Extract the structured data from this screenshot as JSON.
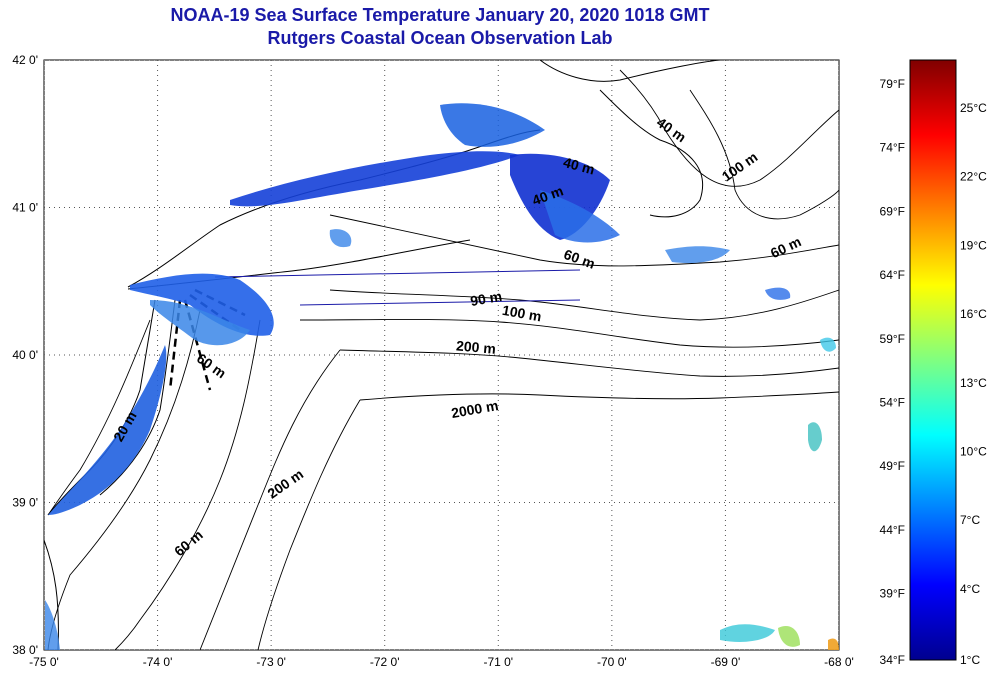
{
  "title": {
    "line1": "NOAA-19 Sea Surface Temperature January 20, 2020 1018 GMT",
    "line2": "Rutgers Coastal Ocean Observation Lab"
  },
  "map": {
    "lat_ticks": [
      {
        "lat": 42,
        "label": "42 0'"
      },
      {
        "lat": 41,
        "label": "41 0'"
      },
      {
        "lat": 40,
        "label": "40 0'"
      },
      {
        "lat": 39,
        "label": "39 0'"
      },
      {
        "lat": 38,
        "label": "38 0'"
      }
    ],
    "lon_ticks": [
      {
        "lon": -75,
        "label": "-75 0'"
      },
      {
        "lon": -74,
        "label": "-74 0'"
      },
      {
        "lon": -73,
        "label": "-73 0'"
      },
      {
        "lon": -72,
        "label": "-72 0'"
      },
      {
        "lon": -71,
        "label": "-71 0'"
      },
      {
        "lon": -70,
        "label": "-70 0'"
      },
      {
        "lon": -69,
        "label": "-69 0'"
      },
      {
        "lon": -68,
        "label": "-68 0'"
      }
    ],
    "depth_labels": [
      {
        "text": "40 m",
        "lon": -69.5,
        "lat": 41.5,
        "rot": 35
      },
      {
        "text": "100 m",
        "lon": -68.85,
        "lat": 41.25,
        "rot": -35
      },
      {
        "text": "40 m",
        "lon": -70.3,
        "lat": 41.25,
        "rot": 15
      },
      {
        "text": "40 m",
        "lon": -70.55,
        "lat": 41.05,
        "rot": -20
      },
      {
        "text": "60 m",
        "lon": -70.3,
        "lat": 40.62,
        "rot": 20
      },
      {
        "text": "60 m",
        "lon": -68.45,
        "lat": 40.7,
        "rot": -25
      },
      {
        "text": "90 m",
        "lon": -71.1,
        "lat": 40.35,
        "rot": -10
      },
      {
        "text": "100 m",
        "lon": -70.8,
        "lat": 40.25,
        "rot": 10
      },
      {
        "text": "200 m",
        "lon": -71.2,
        "lat": 40.02,
        "rot": 5
      },
      {
        "text": "2000 m",
        "lon": -71.2,
        "lat": 39.6,
        "rot": -10
      },
      {
        "text": "60 m",
        "lon": -73.55,
        "lat": 39.9,
        "rot": 35
      },
      {
        "text": "200 m",
        "lon": -72.85,
        "lat": 39.1,
        "rot": -35
      },
      {
        "text": "60 m",
        "lon": -73.7,
        "lat": 38.7,
        "rot": -40
      },
      {
        "text": "20 m",
        "lon": -74.25,
        "lat": 39.5,
        "rot": -60
      }
    ]
  },
  "colorbar": {
    "f_labels": [
      "79°F",
      "74°F",
      "69°F",
      "64°F",
      "59°F",
      "54°F",
      "49°F",
      "44°F",
      "39°F",
      "34°F"
    ],
    "c_labels": [
      "25°C",
      "22°C",
      "19°C",
      "16°C",
      "13°C",
      "10°C",
      "7°C",
      "4°C",
      "1°C"
    ],
    "colors": [
      "#00008f",
      "#0000ff",
      "#0080ff",
      "#00ffff",
      "#80ff80",
      "#ffff00",
      "#ff8000",
      "#ff0000",
      "#800000"
    ]
  }
}
